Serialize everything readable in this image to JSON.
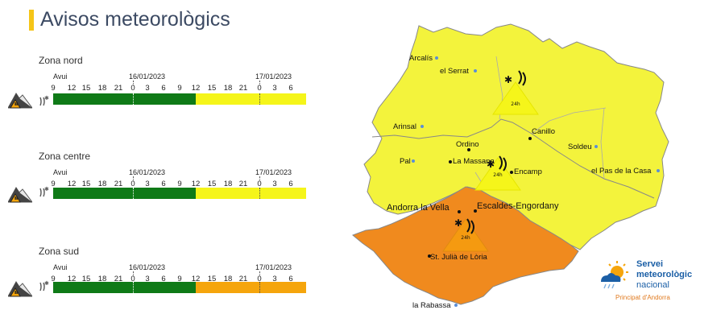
{
  "header": {
    "title": "Avisos meteorològics"
  },
  "colors": {
    "green": "#0f7a17",
    "yellow": "#f5f51a",
    "orange": "#f5a50c",
    "map_yellow": "#f3f33c",
    "map_orange": "#f08a1e",
    "accent": "#f5c518"
  },
  "timeline": {
    "today_label": "Avui",
    "date1": "16/01/2023",
    "date2": "17/01/2023",
    "hours": [
      "9",
      "12",
      "15",
      "18",
      "21",
      "0",
      "3",
      "6",
      "9",
      "12",
      "15",
      "18",
      "21",
      "0",
      "3",
      "6"
    ]
  },
  "zones": [
    {
      "name": "Zona nord",
      "levels": [
        "green",
        "yellow"
      ],
      "icon": "avalanche-icon",
      "phenomenon_icon": "snow-avalanche-icon"
    },
    {
      "name": "Zona centre",
      "levels": [
        "green",
        "yellow"
      ],
      "icon": "avalanche-icon",
      "phenomenon_icon": "snow-avalanche-icon"
    },
    {
      "name": "Zona sud",
      "levels": [
        "green",
        "orange"
      ],
      "icon": "avalanche-icon",
      "phenomenon_icon": "snow-avalanche-icon"
    }
  ],
  "map": {
    "places": [
      "Arcalís",
      "el Serrat",
      "Arinsal",
      "Canillo",
      "Soldeu",
      "Ordino",
      "Pal",
      "La Massana",
      "Encamp",
      "el Pas de la Casa",
      "Andorra la Vella",
      "Escaldes-Engordany",
      "St. Julià de Lòria",
      "la Rabassa"
    ],
    "warning_label": "24h"
  },
  "logo": {
    "line1": "Servei",
    "line2": "meteorològic",
    "line3": "nacional",
    "line4": "Principat d'Andorra"
  }
}
